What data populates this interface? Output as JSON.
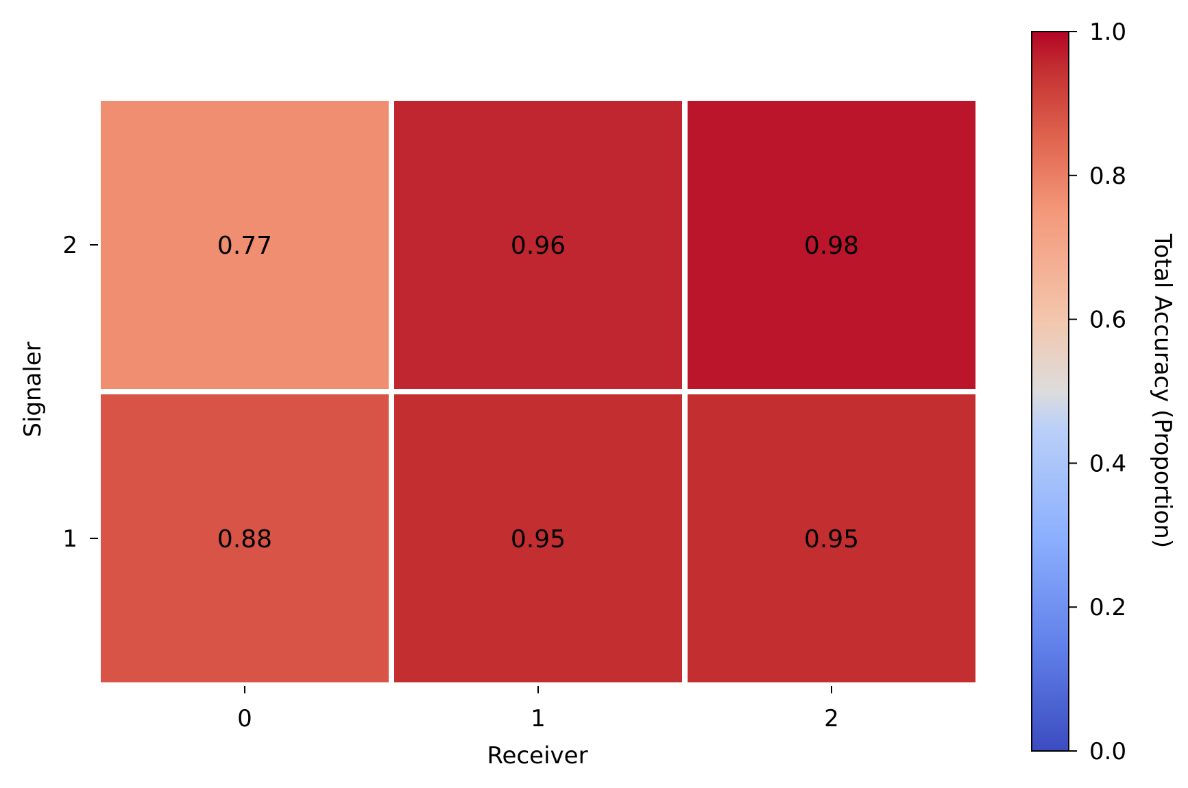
{
  "chart_data": {
    "type": "heatmap",
    "xlabel": "Receiver",
    "ylabel": "Signaler",
    "x_categories": [
      "0",
      "1",
      "2"
    ],
    "y_categories": [
      "1",
      "2"
    ],
    "values": [
      [
        0.88,
        0.95,
        0.95
      ],
      [
        0.77,
        0.96,
        0.98
      ]
    ],
    "colorbar": {
      "label": "Total Accuracy (Proportion)",
      "range": [
        0.0,
        1.0
      ],
      "ticks": [
        "0.0",
        "0.2",
        "0.4",
        "0.6",
        "0.8",
        "1.0"
      ],
      "colormap": "coolwarm",
      "stops": [
        {
          "v": 0.0,
          "color": "#3b4cc0"
        },
        {
          "v": 0.15,
          "color": "#6282ea"
        },
        {
          "v": 0.3,
          "color": "#8db0fe"
        },
        {
          "v": 0.45,
          "color": "#bbd0f8"
        },
        {
          "v": 0.5,
          "color": "#dddcdc"
        },
        {
          "v": 0.6,
          "color": "#f3c6ad"
        },
        {
          "v": 0.75,
          "color": "#f4987a"
        },
        {
          "v": 0.85,
          "color": "#e0654f"
        },
        {
          "v": 0.95,
          "color": "#c32e31"
        },
        {
          "v": 1.0,
          "color": "#b40426"
        }
      ]
    },
    "grid": false,
    "cell_labels": true
  }
}
